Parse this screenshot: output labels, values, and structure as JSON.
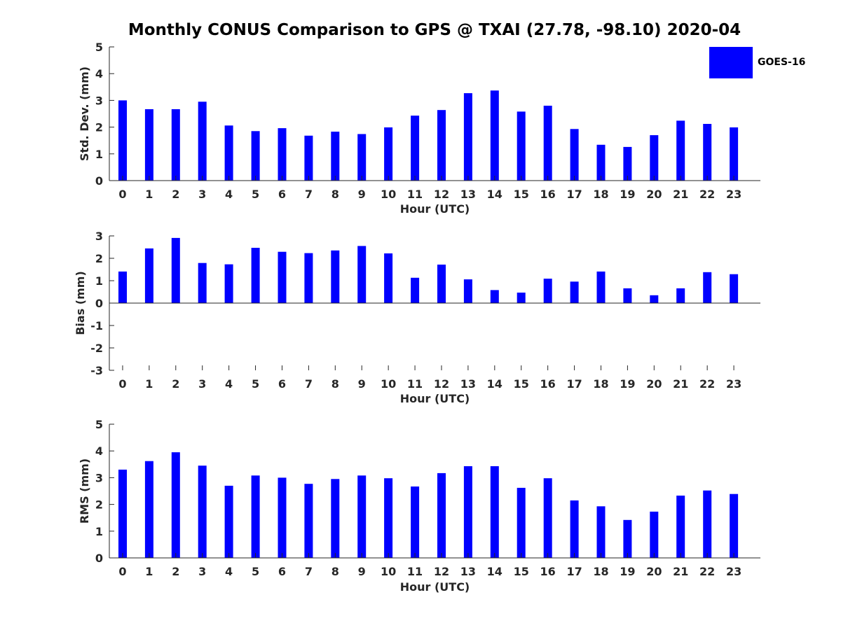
{
  "title": "Monthly CONUS Comparison to GPS @ TXAI (27.78, -98.10) 2020-04",
  "legend": {
    "label": "GOES-16",
    "color": "#0000ff"
  },
  "chart_data": [
    {
      "type": "bar",
      "name": "std",
      "categories": [
        "0",
        "1",
        "2",
        "3",
        "4",
        "5",
        "6",
        "7",
        "8",
        "9",
        "10",
        "11",
        "12",
        "13",
        "14",
        "15",
        "16",
        "17",
        "18",
        "19",
        "20",
        "21",
        "22",
        "23"
      ],
      "series": [
        {
          "name": "GOES-16",
          "values": [
            3.0,
            2.67,
            2.67,
            2.95,
            2.06,
            1.85,
            1.96,
            1.68,
            1.83,
            1.74,
            1.99,
            2.43,
            2.64,
            3.27,
            3.37,
            2.58,
            2.8,
            1.93,
            1.34,
            1.26,
            1.7,
            2.24,
            2.12,
            1.99
          ]
        }
      ],
      "xlabel": "Hour (UTC)",
      "ylabel": "Std. Dev. (mm)",
      "ylim": [
        0,
        5
      ],
      "yticks": [
        0,
        1,
        2,
        3,
        4,
        5
      ],
      "grid": false
    },
    {
      "type": "bar",
      "name": "bias",
      "categories": [
        "0",
        "1",
        "2",
        "3",
        "4",
        "5",
        "6",
        "7",
        "8",
        "9",
        "10",
        "11",
        "12",
        "13",
        "14",
        "15",
        "16",
        "17",
        "18",
        "19",
        "20",
        "21",
        "22",
        "23"
      ],
      "series": [
        {
          "name": "GOES-16",
          "values": [
            1.41,
            2.44,
            2.91,
            1.79,
            1.73,
            2.47,
            2.29,
            2.23,
            2.35,
            2.55,
            2.22,
            1.13,
            1.72,
            1.06,
            0.58,
            0.47,
            1.09,
            0.96,
            1.41,
            0.66,
            0.35,
            0.66,
            1.38,
            1.29
          ]
        }
      ],
      "xlabel": "Hour (UTC)",
      "ylabel": "Bias (mm)",
      "ylim": [
        -3,
        3
      ],
      "yticks": [
        -3,
        -2,
        -1,
        0,
        1,
        2,
        3
      ],
      "grid": false
    },
    {
      "type": "bar",
      "name": "rms",
      "categories": [
        "0",
        "1",
        "2",
        "3",
        "4",
        "5",
        "6",
        "7",
        "8",
        "9",
        "10",
        "11",
        "12",
        "13",
        "14",
        "15",
        "16",
        "17",
        "18",
        "19",
        "20",
        "21",
        "22",
        "23"
      ],
      "series": [
        {
          "name": "GOES-16",
          "values": [
            3.3,
            3.62,
            3.95,
            3.45,
            2.7,
            3.08,
            3.0,
            2.77,
            2.95,
            3.08,
            2.98,
            2.67,
            3.17,
            3.43,
            3.43,
            2.62,
            2.98,
            2.15,
            1.93,
            1.42,
            1.73,
            2.33,
            2.52,
            2.39
          ]
        }
      ],
      "xlabel": "Hour (UTC)",
      "ylabel": "RMS (mm)",
      "ylim": [
        0,
        5
      ],
      "yticks": [
        0,
        1,
        2,
        3,
        4,
        5
      ],
      "grid": false
    }
  ]
}
